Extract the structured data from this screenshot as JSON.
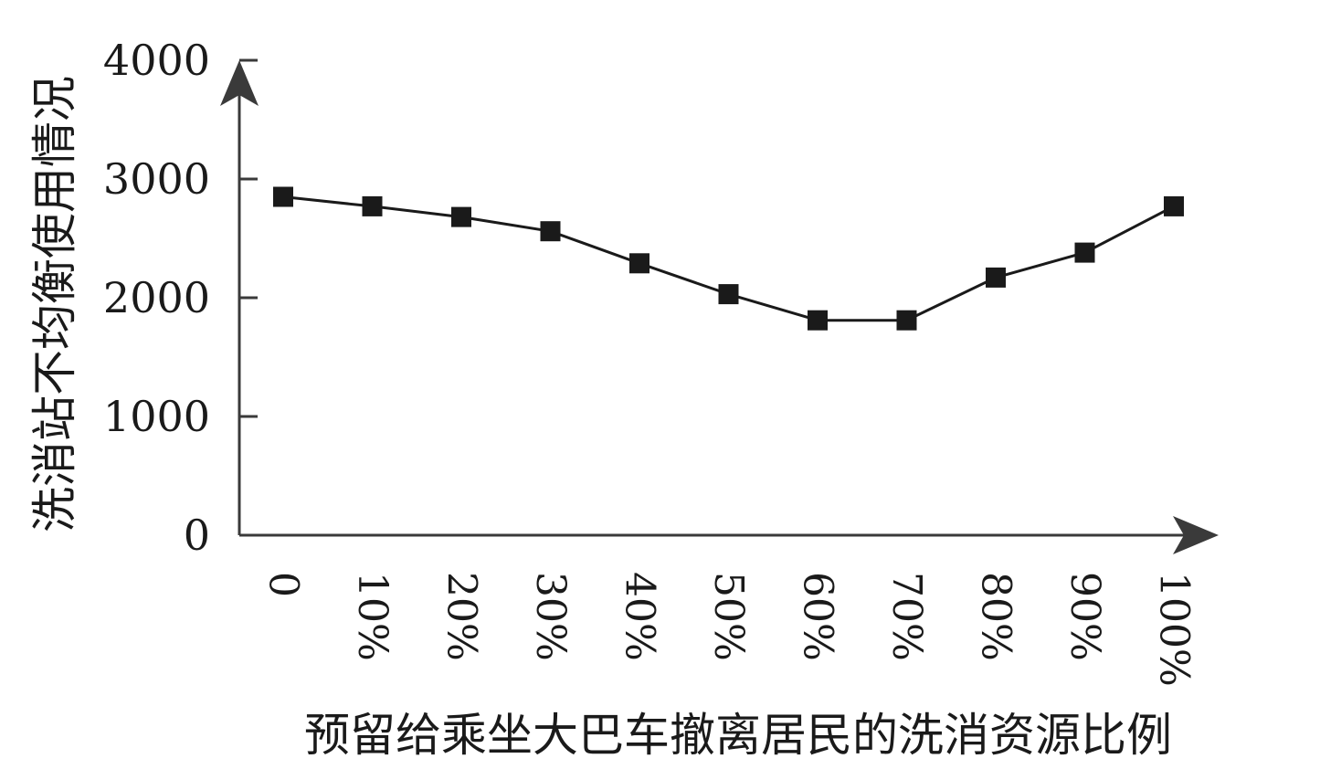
{
  "chart_data": {
    "type": "line",
    "title": "",
    "xlabel": "预留给乘坐大巴车撤离居民的洗消资源比例",
    "ylabel": "洗消站不均衡使用情况",
    "categories": [
      "0",
      "10%",
      "20%",
      "30%",
      "40%",
      "50%",
      "60%",
      "70%",
      "80%",
      "90%",
      "100%"
    ],
    "yticks": [
      "0",
      "1000",
      "2000",
      "3000",
      "4000"
    ],
    "ylim": [
      0,
      4000
    ],
    "grid": false,
    "series": [
      {
        "marker": "square",
        "values": [
          2850,
          2770,
          2680,
          2560,
          2290,
          2030,
          1810,
          1810,
          2170,
          2380,
          2770
        ]
      }
    ],
    "colors": {
      "line": "#1a1a1a",
      "axis": "#3a3a3a"
    }
  }
}
